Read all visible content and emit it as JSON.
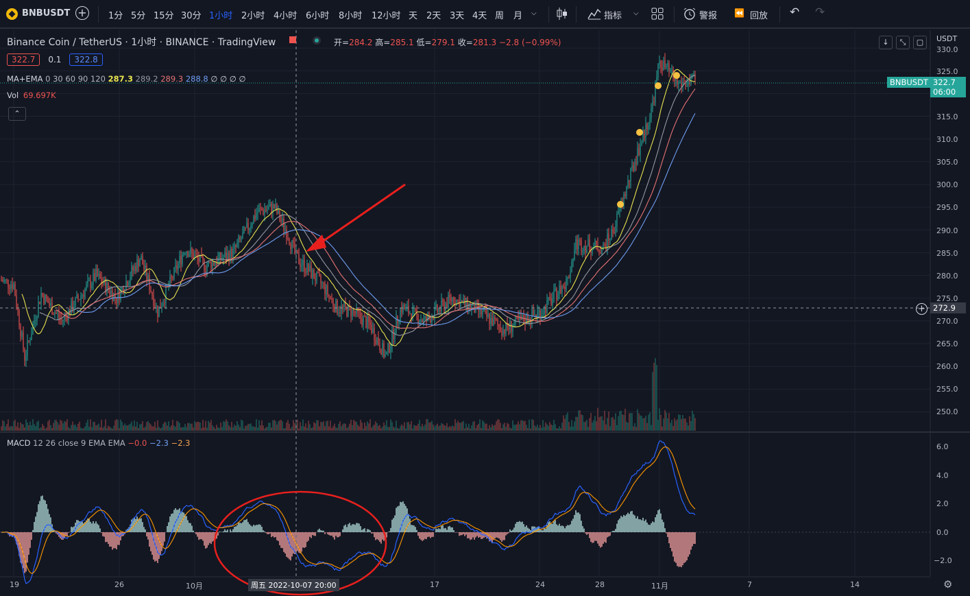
{
  "toolbar": {
    "symbol": "BNBUSDT",
    "intervals": [
      "1分",
      "5分",
      "15分",
      "30分",
      "1小时",
      "2小时",
      "4小时",
      "6小时",
      "8小时",
      "12小时",
      "天",
      "2天",
      "3天",
      "4天",
      "周",
      "月"
    ],
    "active_interval": "1小时",
    "indicators_label": "指标",
    "alert_label": "警报",
    "replay_label": "回放"
  },
  "legend": {
    "title": "Binance Coin / TetherUS · 1小时 · BINANCE · TradingView",
    "ohlc": {
      "open_label": "开=",
      "open": "284.2",
      "high_label": "高=",
      "high": "285.1",
      "low_label": "低=",
      "low": "279.1",
      "close_label": "收=",
      "close": "281.3",
      "change": "−2.8 (−0.99%)"
    },
    "bid": "322.7",
    "spread": "0.1",
    "ask": "322.8",
    "ma": {
      "label": "MA+EMA",
      "params": "0 30 60 90 120",
      "v1": "287.3",
      "v2": "289.2",
      "v3": "289.3",
      "v4": "288.8",
      "rest": "∅ ∅ ∅ ∅"
    },
    "vol": {
      "label": "Vol",
      "value": "69.697K"
    },
    "macd": {
      "label": "MACD",
      "params": "12 26 close 9 EMA EMA",
      "v1": "−0.0",
      "v2": "−2.3",
      "v3": "−2.3"
    }
  },
  "price_axis": {
    "currency": "USDT",
    "ticks": [
      "330.0",
      "325.0",
      "315.0",
      "310.0",
      "305.0",
      "300.0",
      "295.0",
      "290.0",
      "285.0",
      "280.0",
      "275.0",
      "270.0",
      "265.0",
      "260.0",
      "255.0",
      "250.0"
    ],
    "last_price_symbol": "BNBUSDT",
    "last_price": "322.7",
    "countdown": "06:00",
    "crosshair_price": "272.9"
  },
  "macd_axis": {
    "ticks": [
      "6.0",
      "4.0",
      "2.0",
      "0.0",
      "−2.0"
    ]
  },
  "time_axis": {
    "ticks": [
      "19",
      "26",
      "10月",
      "17",
      "24",
      "28",
      "11月",
      "7",
      "14"
    ],
    "crosshair_label": "周五 2022-10-07  20:00"
  },
  "colors": {
    "up": "#26a69a",
    "down": "#ef5350",
    "accent": "#2962ff",
    "ma1": "#e8e34f",
    "ma2": "#9598a1",
    "ma3": "#e57373",
    "ma4": "#6f9df2",
    "annotation": "#e8201d",
    "marker": "#f5c242"
  }
}
